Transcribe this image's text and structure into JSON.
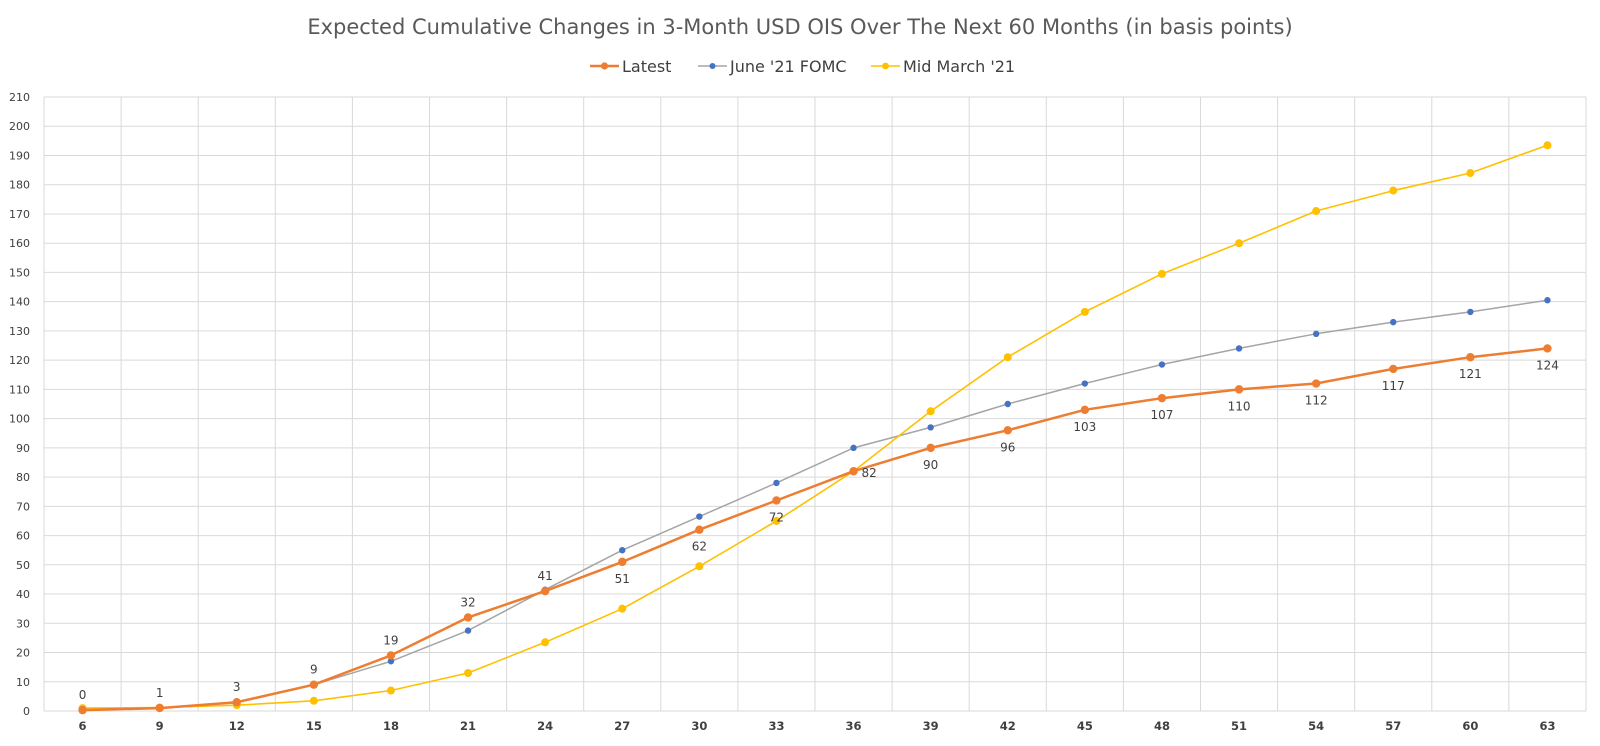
{
  "chart_data": {
    "type": "line",
    "title": "Expected Cumulative Changes in 3-Month USD OIS Over The Next 60 Months (in basis points)",
    "xlabel": "",
    "ylabel": "",
    "x": [
      6,
      9,
      12,
      15,
      18,
      21,
      24,
      27,
      30,
      33,
      36,
      39,
      42,
      45,
      48,
      51,
      54,
      57,
      60,
      63
    ],
    "ylim": [
      0,
      210
    ],
    "ytick_step": 10,
    "grid": true,
    "legend_position": "top-center",
    "series": [
      {
        "name": "Latest",
        "color": "#ED7D31",
        "values": [
          0.3,
          1,
          3,
          9,
          19,
          32,
          41,
          51,
          62,
          72,
          82,
          90,
          96,
          103,
          107,
          110,
          112,
          117,
          121,
          124
        ],
        "labels": [
          "0",
          "1",
          "3",
          "9",
          "19",
          "32",
          "41",
          "51",
          "62",
          "72",
          "82",
          "90",
          "96",
          "103",
          "107",
          "110",
          "112",
          "117",
          "121",
          "124"
        ],
        "label_positions": [
          "above",
          "above",
          "above",
          "above",
          "above",
          "above",
          "above",
          "below",
          "below",
          "below",
          "right",
          "below",
          "below",
          "below",
          "below",
          "below",
          "below",
          "below",
          "below",
          "below"
        ]
      },
      {
        "name": "June '21 FOMC",
        "color": "#4472C4",
        "line_color": "#A5A5A5",
        "values": [
          0.3,
          1,
          3,
          9,
          17,
          27.5,
          41.5,
          55,
          66.5,
          78,
          90,
          97,
          105,
          112,
          118.5,
          124,
          129,
          133,
          136.5,
          140.5
        ]
      },
      {
        "name": "Mid March '21",
        "color": "#FFC000",
        "values": [
          1,
          1.2,
          2,
          3.5,
          7,
          13,
          23.5,
          35,
          49.5,
          65,
          82,
          102.5,
          121,
          136.5,
          149.5,
          160,
          171,
          178,
          184,
          193.5
        ]
      }
    ]
  }
}
